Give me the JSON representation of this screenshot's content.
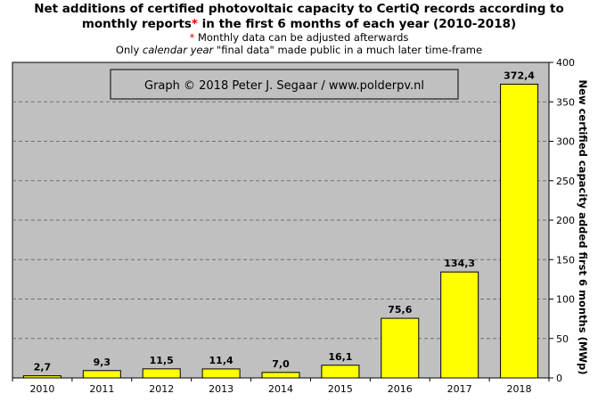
{
  "title_line1": "Net additions of certified photovoltaic capacity to CertiQ records according to",
  "title_line2_a": "monthly reports",
  "title_line2_star": "*",
  "title_line2_b": " in the first 6 months of each year (2010-2018)",
  "subtitle1": "* Monthly data can be adjusted afterwards",
  "subtitle2_a": "Only ",
  "subtitle2_em": "calendar year",
  "subtitle2_b": " \"final data\" made public in a much later time-frame",
  "credit": "Graph © 2018 Peter J. Segaar / www.polderpv.nl",
  "colors": {
    "plot_bg": "#c0c0c0",
    "bar_fill": "#ffff00",
    "bar_stroke": "#000000",
    "accent_red": "#e00000"
  },
  "chart_data": {
    "type": "bar",
    "categories": [
      "2010",
      "2011",
      "2012",
      "2013",
      "2014",
      "2015",
      "2016",
      "2017",
      "2018"
    ],
    "values": [
      2.7,
      9.3,
      11.5,
      11.4,
      7.0,
      16.1,
      75.6,
      134.3,
      372.4
    ],
    "value_labels": [
      "2,7",
      "9,3",
      "11,5",
      "11,4",
      "7,0",
      "16,1",
      "75,6",
      "134,3",
      "372,4"
    ],
    "ylabel": "New certified capacity added first 6 months (MWp)",
    "ylim": [
      0,
      400
    ],
    "yticks": [
      0,
      50,
      100,
      150,
      200,
      250,
      300,
      350,
      400
    ],
    "y_axis_side": "right",
    "grid": "horizontal dashed"
  }
}
